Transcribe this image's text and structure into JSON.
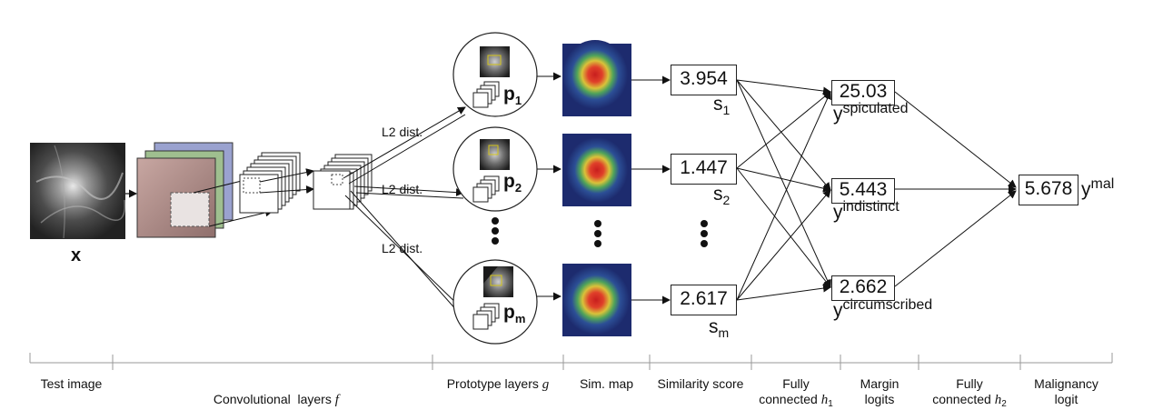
{
  "input": {
    "label": "x"
  },
  "distance_labels": [
    "L2 dist.",
    "L2 dist.",
    "L2 dist."
  ],
  "prototypes": [
    {
      "letter": "p",
      "sub": "1"
    },
    {
      "letter": "p",
      "sub": "2"
    },
    {
      "letter": "p",
      "sub": "m"
    }
  ],
  "similarity_scores": [
    {
      "value": "3.954",
      "symbol": "s",
      "sub": "1"
    },
    {
      "value": "1.447",
      "symbol": "s",
      "sub": "2"
    },
    {
      "value": "2.617",
      "symbol": "s",
      "sub": "m"
    }
  ],
  "margin_logits": [
    {
      "value": "25.03",
      "symbol": "y",
      "sup": "spiculated"
    },
    {
      "value": "5.443",
      "symbol": "y",
      "sup": "indistinct"
    },
    {
      "value": "2.662",
      "symbol": "y",
      "sup": "circumscribed"
    }
  ],
  "malignancy": {
    "value": "5.678",
    "symbol": "y",
    "sup": "mal"
  },
  "stages": {
    "test_image": "Test image",
    "conv": "Convolutional  layers",
    "conv_func": "f",
    "prototype": "Prototype layers",
    "prototype_func": "g",
    "sim_map": "Sim. map",
    "sim_score": "Similarity score",
    "fc1_line1": "Fully",
    "fc1_line2": "connected",
    "fc1_func": "h",
    "fc1_sub": "1",
    "margin_line1": "Margin",
    "margin_line2": "logits",
    "fc2_line1": "Fully",
    "fc2_line2": "connected",
    "fc2_func": "h",
    "fc2_sub": "2",
    "mal_line1": "Malignancy",
    "mal_line2": "logit"
  }
}
